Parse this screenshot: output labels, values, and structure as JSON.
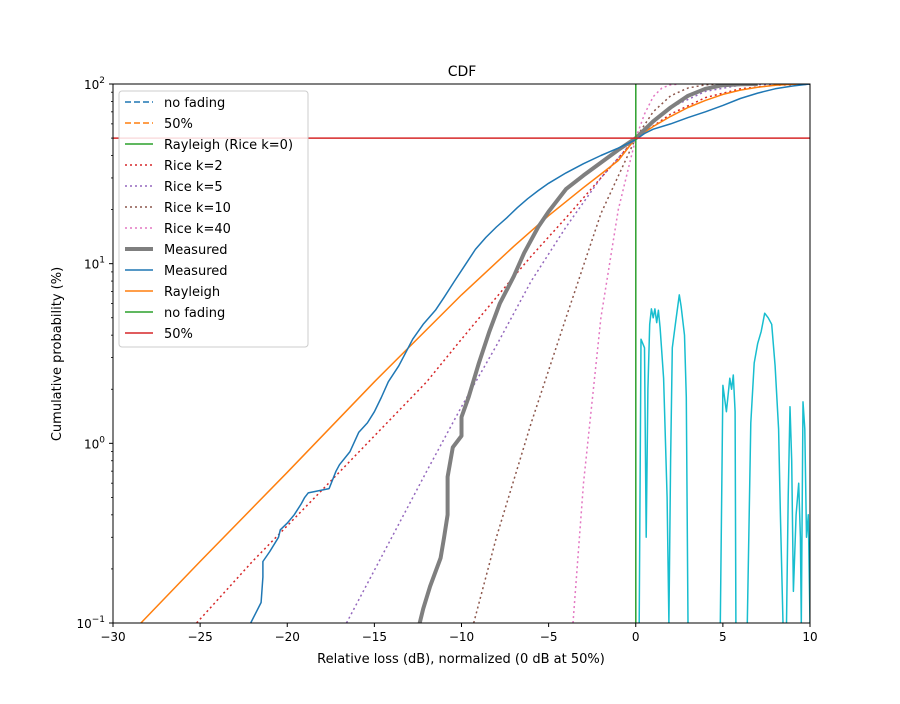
{
  "chart_data": {
    "type": "line",
    "title": "CDF",
    "xlabel": "Relative loss (dB), normalized (0 dB at 50%)",
    "ylabel": "Cumulative probability (%)",
    "xlim": [
      -30,
      10
    ],
    "ylim": [
      0.1,
      100
    ],
    "yscale": "log",
    "grid": false,
    "legend_position": "upper-left",
    "x_ticks": [
      -30,
      -25,
      -20,
      -15,
      -10,
      -5,
      0,
      5,
      10
    ],
    "x_tick_labels": [
      "−30",
      "−25",
      "−20",
      "−15",
      "−10",
      "−5",
      "0",
      "5",
      "10"
    ],
    "y_ticks": [
      {
        "value": 0.1,
        "base": "10",
        "exp": "−1"
      },
      {
        "value": 1,
        "base": "10",
        "exp": "0"
      },
      {
        "value": 10,
        "base": "10",
        "exp": "1"
      },
      {
        "value": 100,
        "base": "10",
        "exp": "2"
      }
    ],
    "legend": [
      {
        "label": "no fading",
        "color": "#1f77b4",
        "style": "dashed",
        "width": 1.5
      },
      {
        "label": "50%",
        "color": "#ff7f0e",
        "style": "dashed",
        "width": 1.5
      },
      {
        "label": "Rayleigh (Rice k=0)",
        "color": "#2ca02c",
        "style": "solid",
        "width": 1.5
      },
      {
        "label": "Rice k=2",
        "color": "#d62728",
        "style": "dotted",
        "width": 1.5
      },
      {
        "label": "Rice k=5",
        "color": "#9467bd",
        "style": "dotted",
        "width": 1.5
      },
      {
        "label": "Rice k=10",
        "color": "#8c564b",
        "style": "dotted",
        "width": 1.5
      },
      {
        "label": "Rice k=40",
        "color": "#e377c2",
        "style": "dotted",
        "width": 1.5
      },
      {
        "label": "Measured",
        "color": "#7f7f7f",
        "style": "solid",
        "width": 4
      },
      {
        "label": "Measured",
        "color": "#1f77b4",
        "style": "solid",
        "width": 1.5
      },
      {
        "label": "Rayleigh",
        "color": "#ff7f0e",
        "style": "solid",
        "width": 1.5
      },
      {
        "label": "no fading",
        "color": "#2ca02c",
        "style": "solid",
        "width": 1.5
      },
      {
        "label": "50%",
        "color": "#d62728",
        "style": "solid",
        "width": 1.5
      }
    ],
    "series": [
      {
        "key": "rice2",
        "color": "#d62728",
        "style": "dotted",
        "width": 1.5,
        "x": [
          -25.2,
          -22,
          -18,
          -15,
          -12,
          -10,
          -8,
          -6,
          -4,
          -2,
          0,
          2,
          4,
          6,
          8,
          10
        ],
        "y": [
          0.1,
          0.22,
          0.55,
          1.1,
          2.2,
          3.8,
          6.5,
          11,
          18,
          30,
          50,
          68,
          84,
          94,
          98.5,
          99.8
        ]
      },
      {
        "key": "rice5",
        "color": "#9467bd",
        "style": "dotted",
        "width": 1.5,
        "x": [
          -16.6,
          -14,
          -12,
          -10,
          -8,
          -6,
          -4,
          -2,
          0,
          2,
          4,
          6,
          8
        ],
        "y": [
          0.1,
          0.3,
          0.7,
          1.6,
          3.5,
          8,
          16,
          30,
          50,
          74,
          91,
          98.5,
          99.9
        ]
      },
      {
        "key": "rice10",
        "color": "#8c564b",
        "style": "dotted",
        "width": 1.5,
        "x": [
          -9.3,
          -8,
          -6,
          -4,
          -2,
          0,
          1,
          2,
          3,
          4,
          5
        ],
        "y": [
          0.1,
          0.3,
          1.3,
          5,
          19,
          50,
          70,
          86,
          95,
          99,
          99.9
        ]
      },
      {
        "key": "rice40",
        "color": "#e377c2",
        "style": "dotted",
        "width": 1.5,
        "x": [
          -3.6,
          -3,
          -2,
          -1,
          0,
          0.5,
          1,
          1.5,
          2,
          2.5
        ],
        "y": [
          0.1,
          0.6,
          5,
          20,
          50,
          68,
          85,
          95,
          99,
          99.9
        ]
      },
      {
        "key": "rayleigh",
        "color": "#ff7f0e",
        "style": "solid",
        "width": 1.5,
        "x": [
          -28.4,
          -25,
          -20,
          -15,
          -10,
          -7,
          -5,
          -3,
          -2,
          -1,
          0,
          1,
          2,
          3,
          4,
          5,
          6,
          7,
          8,
          9,
          10
        ],
        "y": [
          0.1,
          0.22,
          0.69,
          2.2,
          6.7,
          12.5,
          18.5,
          26.5,
          31.5,
          37.5,
          50,
          58,
          66,
          74,
          81,
          87.5,
          92.5,
          96,
          98.5,
          99.6,
          100
        ]
      },
      {
        "key": "measured_thick",
        "color": "#7f7f7f",
        "style": "solid",
        "width": 4,
        "x": [
          -12.4,
          -12.2,
          -11.8,
          -11.2,
          -11,
          -10.8,
          -10.8,
          -10.5,
          -10,
          -10,
          -9.6,
          -9,
          -8.4,
          -7.8,
          -7,
          -6.4,
          -5.6,
          -5,
          -4.5,
          -4,
          -3,
          -2,
          -1,
          0,
          1,
          2,
          3,
          4,
          5,
          6,
          7
        ],
        "y": [
          0.1,
          0.12,
          0.16,
          0.23,
          0.3,
          0.4,
          0.65,
          0.95,
          1.1,
          1.4,
          1.8,
          2.8,
          4.2,
          6,
          8.5,
          11.5,
          16,
          19.5,
          22.5,
          26,
          31,
          36.5,
          43,
          50,
          62,
          74,
          86,
          94,
          98.5,
          99.6,
          100
        ]
      },
      {
        "key": "measured_thin",
        "color": "#1f77b4",
        "style": "solid",
        "width": 1.5,
        "x": [
          -22.1,
          -21.5,
          -21.4,
          -21.4,
          -21.0,
          -20.5,
          -20.4,
          -20.0,
          -19.6,
          -19.2,
          -19.0,
          -18.8,
          -17.6,
          -17.2,
          -17.0,
          -16.4,
          -15.9,
          -15.4,
          -15.0,
          -14.6,
          -14.2,
          -13.6,
          -13.2,
          -12.8,
          -12.2,
          -11.5,
          -11,
          -10.4,
          -9.8,
          -9.2,
          -8.6,
          -8,
          -7.4,
          -6.8,
          -6.2,
          -5.6,
          -5,
          -4,
          -3,
          -2,
          -1,
          0,
          0.5,
          1,
          2,
          3,
          4,
          5,
          6,
          7,
          8,
          9,
          10
        ],
        "y": [
          0.1,
          0.13,
          0.18,
          0.22,
          0.25,
          0.3,
          0.33,
          0.36,
          0.4,
          0.46,
          0.5,
          0.53,
          0.56,
          0.7,
          0.76,
          0.9,
          1.15,
          1.3,
          1.5,
          1.8,
          2.2,
          2.7,
          3.2,
          3.8,
          4.6,
          5.5,
          6.5,
          8,
          9.8,
          12,
          14,
          16,
          18,
          20.5,
          23,
          25.5,
          28,
          32,
          36,
          40,
          44,
          49,
          53,
          56,
          60,
          65,
          70,
          76,
          83,
          89,
          94,
          97.5,
          100
        ]
      },
      {
        "key": "cyan_noise",
        "color": "#17becf",
        "style": "solid",
        "width": 1.5,
        "x": [
          0.2,
          0.3,
          0.5,
          0.6,
          0.7,
          0.8,
          0.9,
          1.0,
          1.1,
          1.2,
          1.3,
          1.4,
          1.6,
          1.8,
          1.9,
          2.0,
          2.1,
          2.3,
          2.5,
          2.6,
          2.8,
          2.9,
          3.0
        ],
        "y": [
          0.1,
          3.8,
          3.4,
          0.3,
          2.0,
          4.6,
          5.6,
          5.0,
          5.6,
          4.7,
          5.5,
          4.4,
          2.3,
          0.5,
          0.1,
          0.8,
          3.4,
          4.8,
          6.7,
          5.8,
          4.0,
          1.8,
          0.1
        ]
      },
      {
        "key": "cyan_noise_b",
        "color": "#17becf",
        "style": "solid",
        "width": 1.5,
        "x": [
          4.85,
          5.0,
          5.2,
          5.4,
          5.5,
          5.6,
          5.7,
          5.75
        ],
        "y": [
          0.1,
          2.1,
          1.5,
          2.3,
          2.0,
          2.4,
          1.5,
          0.1
        ]
      },
      {
        "key": "cyan_noise_c",
        "color": "#17becf",
        "style": "solid",
        "width": 1.5,
        "x": [
          6.4,
          6.6,
          6.8,
          7.0,
          7.2,
          7.4,
          7.6,
          7.8,
          8.0,
          8.2,
          8.3,
          8.45
        ],
        "y": [
          0.1,
          1.3,
          2.8,
          3.6,
          4.2,
          5.3,
          5.0,
          4.6,
          2.7,
          1.2,
          0.4,
          0.1
        ]
      },
      {
        "key": "cyan_noise_d",
        "color": "#17becf",
        "style": "solid",
        "width": 1.5,
        "x": [
          8.65,
          8.75,
          8.85,
          8.95,
          9.05,
          9.2,
          9.35,
          9.45,
          9.5,
          9.6,
          9.7,
          9.8,
          9.9,
          10.0
        ],
        "y": [
          0.1,
          0.5,
          1.6,
          0.8,
          0.15,
          0.4,
          0.6,
          0.3,
          0.1,
          1.7,
          1.2,
          0.3,
          0.4,
          0.1
        ]
      },
      {
        "key": "no_fading_vline",
        "color": "#2ca02c",
        "style": "solid",
        "width": 1.5,
        "x": [
          0,
          0
        ],
        "y": [
          0.1,
          100
        ]
      },
      {
        "key": "fifty_hline",
        "color": "#d62728",
        "style": "solid",
        "width": 1.5,
        "x": [
          -30,
          10
        ],
        "y": [
          50,
          50
        ]
      }
    ]
  }
}
